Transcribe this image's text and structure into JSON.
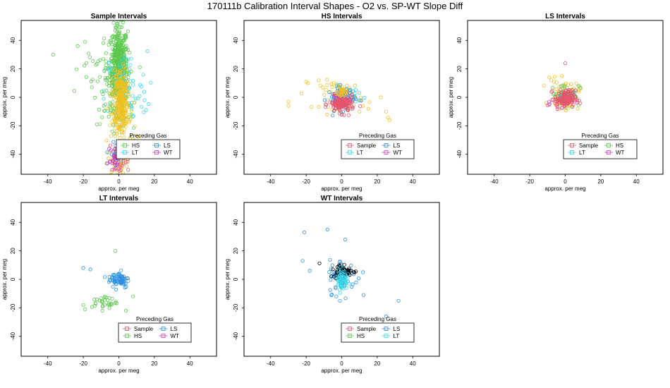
{
  "title": "170111b   Calibration Interval Shapes - O2 vs. SP-WT Slope Diff",
  "colors": {
    "Sample": "#e8546a",
    "HS": "#5cc84e",
    "LS": "#2c8fe0",
    "LT": "#35d5e5",
    "WT": "#c83cc2",
    "gold": "#f0c020",
    "black": "#000000"
  },
  "chart_data": [
    {
      "id": "sample",
      "type": "scatter",
      "title": "Sample Intervals",
      "xlabel": "approx. per meg",
      "ylabel": "approx. per meg",
      "xlim": [
        -55,
        55
      ],
      "ylim": [
        -54,
        54
      ],
      "xticks": [
        "-40",
        "-20",
        "0",
        "20",
        "40"
      ],
      "xtick_values": [
        -40,
        -20,
        0,
        20,
        40
      ],
      "yticks": [
        "-40",
        "-20",
        "0",
        "20",
        "40"
      ],
      "ytick_values": [
        -40,
        -20,
        0,
        20,
        40
      ],
      "legend": {
        "title": "Preceding Gas",
        "entries": [
          "HS",
          "LS",
          "LT",
          "WT"
        ],
        "placement": "bottom-right"
      },
      "series": [
        {
          "name": "HS",
          "clusters": [
            {
              "cx": 0,
              "cy": 22,
              "sx": 2.5,
              "sy": 14,
              "n": 460
            },
            {
              "cx": -4,
              "cy": 10,
              "sx": 5,
              "sy": 14,
              "n": 80
            },
            {
              "cx": -20,
              "cy": 18,
              "sx": 6,
              "sy": 12,
              "n": 12
            }
          ],
          "points": [
            [
              -37,
              30
            ],
            [
              -19,
              39
            ]
          ]
        },
        {
          "name": "LT",
          "clusters": [
            {
              "cx": 4,
              "cy": 4,
              "sx": 6,
              "sy": 14,
              "n": 90
            }
          ]
        },
        {
          "name": "gold",
          "clusters": [
            {
              "cx": 1,
              "cy": 0,
              "sx": 2,
              "sy": 10,
              "n": 230
            },
            {
              "cx": 2,
              "cy": -20,
              "sx": 4,
              "sy": 8,
              "n": 70
            },
            {
              "cx": 0,
              "cy": -45,
              "sx": 3,
              "sy": 5,
              "n": 25
            }
          ]
        },
        {
          "name": "LS",
          "clusters": [
            {
              "cx": -2,
              "cy": -40,
              "sx": 1.5,
              "sy": 4,
              "n": 25
            }
          ]
        },
        {
          "name": "Sample",
          "clusters": [
            {
              "cx": 0,
              "cy": -45,
              "sx": 3,
              "sy": 5,
              "n": 35
            }
          ]
        },
        {
          "name": "WT",
          "clusters": [
            {
              "cx": -2,
              "cy": -44,
              "sx": 2,
              "sy": 5,
              "n": 20
            }
          ]
        }
      ]
    },
    {
      "id": "hs",
      "type": "scatter",
      "title": "HS Intervals",
      "xlabel": "approx. per meg",
      "ylabel": "approx. per meg",
      "xlim": [
        -55,
        55
      ],
      "ylim": [
        -54,
        54
      ],
      "xticks": [
        "-40",
        "-20",
        "0",
        "20",
        "40"
      ],
      "xtick_values": [
        -40,
        -20,
        0,
        20,
        40
      ],
      "yticks": [
        "-40",
        "-20",
        "0",
        "20",
        "40"
      ],
      "ytick_values": [
        -40,
        -20,
        0,
        20,
        40
      ],
      "legend": {
        "title": "Preceding Gas",
        "entries": [
          "Sample",
          "LS",
          "LT",
          "WT"
        ],
        "placement": "bottom-right"
      },
      "series": [
        {
          "name": "gold",
          "clusters": [
            {
              "cx": 0,
              "cy": 2,
              "sx": 6,
              "sy": 5,
              "n": 55
            }
          ],
          "points": [
            [
              -30,
              -3
            ],
            [
              -30,
              -6
            ],
            [
              -20,
              11
            ],
            [
              -19,
              10
            ],
            [
              -13,
              12
            ],
            [
              22,
              0
            ],
            [
              25,
              -10
            ],
            [
              26,
              -14
            ],
            [
              27,
              -16
            ],
            [
              15,
              -8
            ],
            [
              12,
              -6
            ],
            [
              10,
              -10
            ]
          ]
        },
        {
          "name": "LS",
          "clusters": [
            {
              "cx": 0,
              "cy": -1,
              "sx": 4,
              "sy": 4,
              "n": 80
            }
          ]
        },
        {
          "name": "LT",
          "clusters": [
            {
              "cx": 2,
              "cy": 2,
              "sx": 4,
              "sy": 3,
              "n": 25
            }
          ]
        },
        {
          "name": "WT",
          "clusters": [
            {
              "cx": -1,
              "cy": -2,
              "sx": 3,
              "sy": 3,
              "n": 20
            }
          ]
        },
        {
          "name": "Sample",
          "clusters": [
            {
              "cx": 0,
              "cy": -5,
              "sx": 3.5,
              "sy": 3,
              "n": 120
            }
          ]
        },
        {
          "name": "gold",
          "clusters": [
            {
              "cx": 0,
              "cy": 4,
              "sx": 1.2,
              "sy": 2,
              "n": 25
            }
          ]
        }
      ]
    },
    {
      "id": "ls",
      "type": "scatter",
      "title": "LS Intervals",
      "xlabel": "approx. per meg",
      "ylabel": "approx. per meg",
      "xlim": [
        -55,
        55
      ],
      "ylim": [
        -54,
        54
      ],
      "xticks": [
        "-40",
        "-20",
        "0",
        "20",
        "40"
      ],
      "xtick_values": [
        -40,
        -20,
        0,
        20,
        40
      ],
      "yticks": [
        "-40",
        "-20",
        "0",
        "20",
        "40"
      ],
      "ytick_values": [
        -40,
        -20,
        0,
        20,
        40
      ],
      "legend": {
        "title": "Preceding Gas",
        "entries": [
          "Sample",
          "HS",
          "LT",
          "WT"
        ],
        "placement": "bottom-right"
      },
      "series": [
        {
          "name": "gold",
          "clusters": [
            {
              "cx": 0,
              "cy": 2,
              "sx": 4,
              "sy": 5,
              "n": 60
            }
          ],
          "points": [
            [
              -9,
              14
            ],
            [
              -8,
              12
            ],
            [
              8,
              8
            ],
            [
              7,
              -8
            ]
          ]
        },
        {
          "name": "HS",
          "clusters": [
            {
              "cx": 0,
              "cy": 2,
              "sx": 4,
              "sy": 4,
              "n": 45
            }
          ]
        },
        {
          "name": "LT",
          "clusters": [
            {
              "cx": -1,
              "cy": 0,
              "sx": 3,
              "sy": 3,
              "n": 20
            }
          ]
        },
        {
          "name": "WT",
          "clusters": [
            {
              "cx": -2,
              "cy": -3,
              "sx": 3,
              "sy": 3,
              "n": 12
            }
          ],
          "points": [
            [
              -9,
              -5
            ]
          ]
        },
        {
          "name": "Sample",
          "clusters": [
            {
              "cx": 0,
              "cy": -1,
              "sx": 3,
              "sy": 3,
              "n": 130
            }
          ],
          "points": [
            [
              0,
              24
            ]
          ]
        }
      ]
    },
    {
      "id": "lt",
      "type": "scatter",
      "title": "LT Intervals",
      "xlabel": "approx. per meg",
      "ylabel": "approx. per meg",
      "xlim": [
        -55,
        55
      ],
      "ylim": [
        -54,
        54
      ],
      "xticks": [
        "-40",
        "-20",
        "0",
        "20",
        "40"
      ],
      "xtick_values": [
        -40,
        -20,
        0,
        20,
        40
      ],
      "yticks": [
        "-40",
        "-20",
        "0",
        "20",
        "40"
      ],
      "ytick_values": [
        -40,
        -20,
        0,
        20,
        40
      ],
      "legend": {
        "title": "Preceding Gas",
        "entries": [
          "Sample",
          "LS",
          "HS",
          "WT"
        ],
        "placement": "bottom-right"
      },
      "series": [
        {
          "name": "HS",
          "clusters": [
            {
              "cx": -8,
              "cy": -16,
              "sx": 3.5,
              "sy": 2.5,
              "n": 32
            }
          ],
          "points": [
            [
              -20,
              -18
            ],
            [
              -19,
              -21
            ],
            [
              -2,
              20
            ],
            [
              4,
              -22
            ],
            [
              8,
              -12
            ]
          ]
        },
        {
          "name": "LS",
          "clusters": [
            {
              "cx": 0,
              "cy": 0,
              "sx": 3,
              "sy": 3,
              "n": 70
            }
          ],
          "points": [
            [
              -20,
              8
            ],
            [
              -16,
              7
            ]
          ]
        }
      ]
    },
    {
      "id": "wt",
      "type": "scatter",
      "title": "WT Intervals",
      "xlabel": "approx. per meg",
      "ylabel": "approx. per meg",
      "xlim": [
        -55,
        55
      ],
      "ylim": [
        -54,
        54
      ],
      "xticks": [
        "-40",
        "-20",
        "0",
        "20",
        "40"
      ],
      "xtick_values": [
        -40,
        -20,
        0,
        20,
        40
      ],
      "yticks": [
        "-40",
        "-20",
        "0",
        "20",
        "40"
      ],
      "ytick_values": [
        -40,
        -20,
        0,
        20,
        40
      ],
      "legend": {
        "title": "Preceding Gas",
        "entries": [
          "Sample",
          "LS",
          "HS",
          "LT"
        ],
        "placement": "bottom-right"
      },
      "series": [
        {
          "name": "LS",
          "clusters": [
            {
              "cx": 1,
              "cy": 2,
              "sx": 4,
              "sy": 6,
              "n": 60
            }
          ],
          "points": [
            [
              -21,
              33
            ],
            [
              -8,
              35
            ],
            [
              2,
              28
            ],
            [
              -22,
              13
            ],
            [
              -18,
              6
            ],
            [
              12,
              5
            ],
            [
              -3,
              -12
            ],
            [
              -1,
              -15
            ],
            [
              25,
              -26
            ],
            [
              32,
              -15
            ]
          ]
        },
        {
          "name": "black",
          "clusters": [
            {
              "cx": 1,
              "cy": 6,
              "sx": 4,
              "sy": 2.5,
              "n": 45
            }
          ]
        },
        {
          "name": "LT",
          "clusters": [
            {
              "cx": 0,
              "cy": 0,
              "sx": 1.5,
              "sy": 3.5,
              "n": 60
            }
          ]
        }
      ]
    }
  ]
}
